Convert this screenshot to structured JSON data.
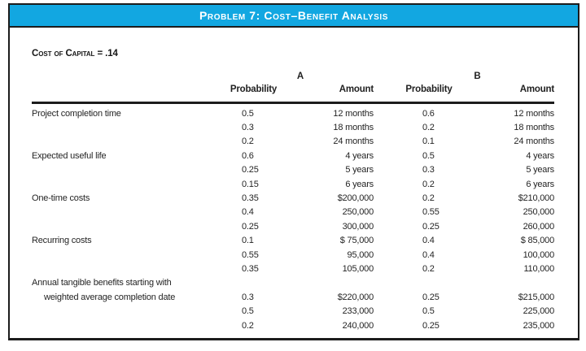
{
  "banner": {
    "title": "Problem 7: Cost–Benefit Analysis",
    "background_color": "#12A7E1",
    "text_color": "#FFFFFF"
  },
  "subtitle": "Cost of Capital = .14",
  "table": {
    "group_headers": {
      "a": "A",
      "b": "B"
    },
    "column_headers": {
      "prob_a": "Probability",
      "amount_a": "Amount",
      "prob_b": "Probability",
      "amount_b": "Amount"
    },
    "rows": [
      {
        "label": "Project completion time",
        "indent": false,
        "cells": [
          "0.5",
          "12 months",
          "0.6",
          "12 months"
        ]
      },
      {
        "label": "",
        "indent": false,
        "cells": [
          "0.3",
          "18 months",
          "0.2",
          "18 months"
        ]
      },
      {
        "label": "",
        "indent": false,
        "cells": [
          "0.2",
          "24 months",
          "0.1",
          "24 months"
        ]
      },
      {
        "label": "Expected useful life",
        "indent": false,
        "cells": [
          "0.6",
          "4 years",
          "0.5",
          "4 years"
        ]
      },
      {
        "label": "",
        "indent": false,
        "cells": [
          "0.25",
          "5 years",
          "0.3",
          "5 years"
        ]
      },
      {
        "label": "",
        "indent": false,
        "cells": [
          "0.15",
          "6 years",
          "0.2",
          "6 years"
        ]
      },
      {
        "label": "One-time costs",
        "indent": false,
        "cells": [
          "0.35",
          "$200,000",
          "0.2",
          "$210,000"
        ]
      },
      {
        "label": "",
        "indent": false,
        "cells": [
          "0.4",
          "250,000",
          "0.55",
          "250,000"
        ]
      },
      {
        "label": "",
        "indent": false,
        "cells": [
          "0.25",
          "300,000",
          "0.25",
          "260,000"
        ]
      },
      {
        "label": "Recurring costs",
        "indent": false,
        "cells": [
          "0.1",
          "$ 75,000",
          "0.4",
          "$ 85,000"
        ]
      },
      {
        "label": "",
        "indent": false,
        "cells": [
          "0.55",
          "95,000",
          "0.4",
          "100,000"
        ]
      },
      {
        "label": "",
        "indent": false,
        "cells": [
          "0.35",
          "105,000",
          "0.2",
          "110,000"
        ]
      },
      {
        "label": "Annual tangible benefits starting with",
        "indent": false,
        "cells": [
          "",
          "",
          "",
          ""
        ]
      },
      {
        "label": "weighted average completion date",
        "indent": true,
        "cells": [
          "0.3",
          "$220,000",
          "0.25",
          "$215,000"
        ]
      },
      {
        "label": "",
        "indent": false,
        "cells": [
          "0.5",
          "233,000",
          "0.5",
          "225,000"
        ]
      },
      {
        "label": "",
        "indent": false,
        "cells": [
          "0.2",
          "240,000",
          "0.25",
          "235,000"
        ]
      }
    ]
  }
}
